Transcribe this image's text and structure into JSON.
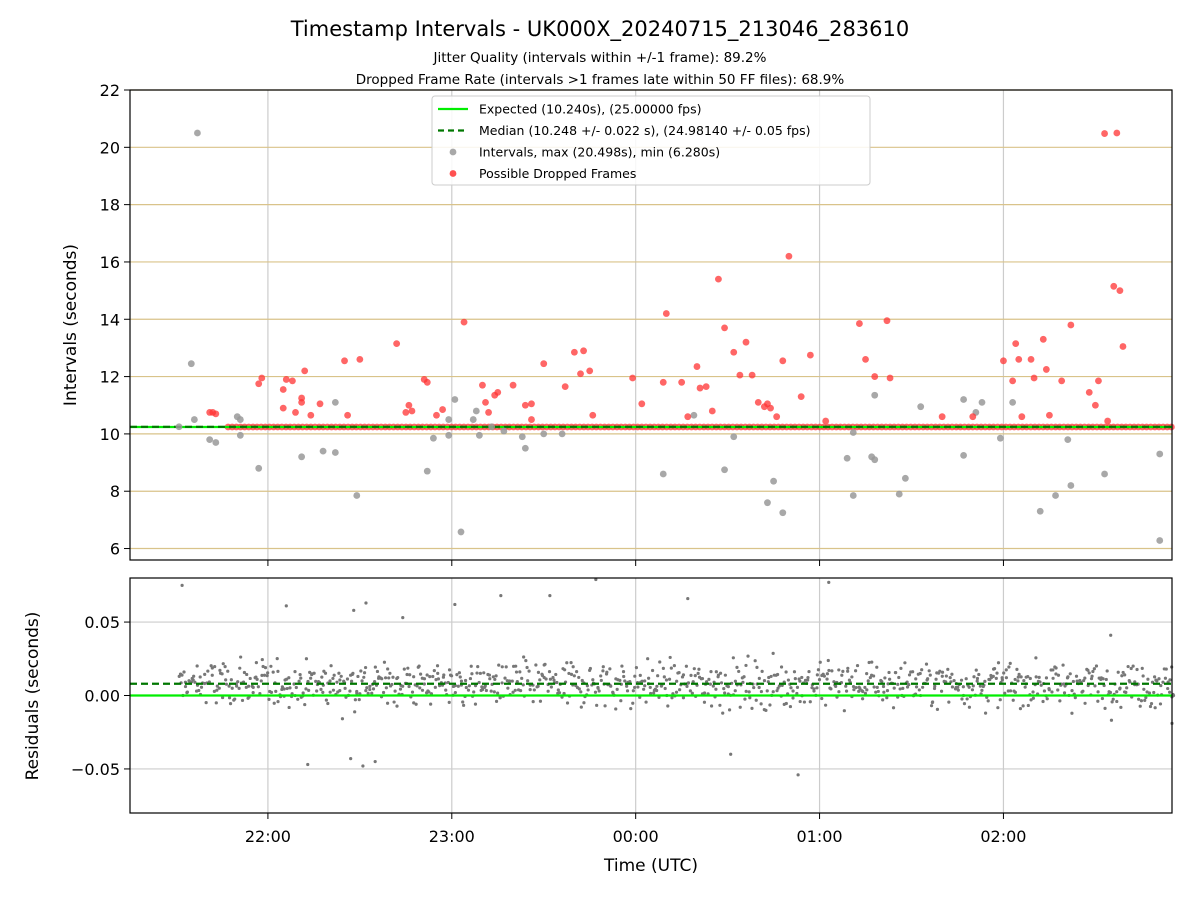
{
  "figure": {
    "title": "Timestamp Intervals - UK000X_20240715_213046_283610",
    "subtitle_1": "Jitter Quality (intervals within +/-1 frame): 89.2%",
    "subtitle_2": "Dropped Frame Rate (intervals >1 frames late within 50 FF files): 68.9%"
  },
  "chart_data": [
    {
      "type": "scatter",
      "panel": "top",
      "xlabel": "",
      "ylabel": "Intervals (seconds)",
      "x_axis": "Time (UTC)",
      "xlim": [
        "21:15",
        "02:55"
      ],
      "ylim": [
        5.6,
        22
      ],
      "y_ticks": [
        6,
        8,
        10,
        12,
        14,
        16,
        18,
        20,
        22
      ],
      "x_ticks": [
        "22:00",
        "23:00",
        "00:00",
        "01:00",
        "02:00"
      ],
      "grid": "horizontal tan lines, vertical grey lines",
      "legend_position": "top-center",
      "colors": {
        "expected": "#00ee00",
        "median": "#007700",
        "intervals": "#999999",
        "dropped": "#ff3333",
        "hgrid": "#d9c38a",
        "vgrid": "#cccccc"
      },
      "lines": [
        {
          "name": "Expected (10.240s), (25.00000 fps)",
          "y": 10.24,
          "style": "solid"
        },
        {
          "name": "Median (10.248 +/- 0.022 s), (24.98140 +/- 0.05 fps)",
          "y": 10.248,
          "style": "dashed"
        }
      ],
      "baseline_band": {
        "y": 10.24,
        "from": "21:47",
        "to": "02:55"
      },
      "series": [
        {
          "name": "Intervals, max (20.498s), min (6.280s)",
          "points": [
            [
              "21:31",
              10.25
            ],
            [
              "21:35",
              12.45
            ],
            [
              "21:37",
              20.5
            ],
            [
              "21:36",
              10.5
            ],
            [
              "21:41",
              9.8
            ],
            [
              "21:43",
              9.7
            ],
            [
              "21:50",
              10.6
            ],
            [
              "21:51",
              10.5
            ],
            [
              "21:51",
              9.95
            ],
            [
              "21:57",
              8.8
            ],
            [
              "22:11",
              9.2
            ],
            [
              "22:18",
              9.4
            ],
            [
              "22:22",
              9.35
            ],
            [
              "22:22",
              11.1
            ],
            [
              "22:29",
              7.85
            ],
            [
              "22:52",
              8.7
            ],
            [
              "22:54",
              9.85
            ],
            [
              "22:59",
              10.5
            ],
            [
              "22:59",
              9.95
            ],
            [
              "23:01",
              11.2
            ],
            [
              "23:03",
              6.58
            ],
            [
              "23:07",
              10.5
            ],
            [
              "23:08",
              10.8
            ],
            [
              "23:09",
              9.95
            ],
            [
              "23:13",
              10.25
            ],
            [
              "23:17",
              10.1
            ],
            [
              "23:23",
              9.9
            ],
            [
              "23:24",
              9.5
            ],
            [
              "23:30",
              10.0
            ],
            [
              "23:36",
              10.0
            ],
            [
              "00:09",
              8.6
            ],
            [
              "00:19",
              10.65
            ],
            [
              "00:29",
              8.75
            ],
            [
              "00:32",
              9.9
            ],
            [
              "00:43",
              7.6
            ],
            [
              "00:45",
              8.35
            ],
            [
              "00:48",
              7.25
            ],
            [
              "01:09",
              9.15
            ],
            [
              "01:11",
              10.05
            ],
            [
              "01:11",
              7.85
            ],
            [
              "01:17",
              9.2
            ],
            [
              "01:18",
              11.35
            ],
            [
              "01:18",
              9.1
            ],
            [
              "01:26",
              7.9
            ],
            [
              "01:28",
              8.45
            ],
            [
              "01:33",
              10.95
            ],
            [
              "01:47",
              11.2
            ],
            [
              "01:47",
              9.25
            ],
            [
              "01:51",
              10.75
            ],
            [
              "01:53",
              11.1
            ],
            [
              "01:59",
              9.85
            ],
            [
              "02:03",
              11.1
            ],
            [
              "02:12",
              7.3
            ],
            [
              "02:17",
              7.85
            ],
            [
              "02:21",
              9.8
            ],
            [
              "02:22",
              8.2
            ],
            [
              "02:33",
              8.6
            ],
            [
              "02:51",
              6.28
            ],
            [
              "02:51",
              9.3
            ]
          ]
        },
        {
          "name": "Possible Dropped Frames",
          "points": [
            [
              "21:41",
              10.75
            ],
            [
              "21:42",
              10.75
            ],
            [
              "21:43",
              10.7
            ],
            [
              "21:57",
              11.75
            ],
            [
              "21:58",
              11.95
            ],
            [
              "22:05",
              11.55
            ],
            [
              "22:05",
              10.9
            ],
            [
              "22:06",
              11.9
            ],
            [
              "22:08",
              11.85
            ],
            [
              "22:09",
              10.75
            ],
            [
              "22:11",
              11.1
            ],
            [
              "22:11",
              11.25
            ],
            [
              "22:12",
              12.2
            ],
            [
              "22:14",
              10.65
            ],
            [
              "22:17",
              11.05
            ],
            [
              "22:25",
              12.55
            ],
            [
              "22:26",
              10.65
            ],
            [
              "22:30",
              12.6
            ],
            [
              "22:42",
              13.15
            ],
            [
              "22:45",
              10.75
            ],
            [
              "22:46",
              11.0
            ],
            [
              "22:47",
              10.8
            ],
            [
              "22:51",
              11.9
            ],
            [
              "22:52",
              11.8
            ],
            [
              "22:55",
              10.65
            ],
            [
              "22:57",
              10.85
            ],
            [
              "23:04",
              13.9
            ],
            [
              "23:10",
              11.7
            ],
            [
              "23:11",
              11.1
            ],
            [
              "23:12",
              10.75
            ],
            [
              "23:14",
              11.35
            ],
            [
              "23:15",
              11.45
            ],
            [
              "23:20",
              11.7
            ],
            [
              "23:24",
              11.0
            ],
            [
              "23:26",
              11.05
            ],
            [
              "23:26",
              10.5
            ],
            [
              "23:30",
              12.45
            ],
            [
              "23:37",
              11.65
            ],
            [
              "23:40",
              12.85
            ],
            [
              "23:42",
              12.1
            ],
            [
              "23:43",
              12.9
            ],
            [
              "23:45",
              12.2
            ],
            [
              "23:46",
              10.65
            ],
            [
              "23:59",
              11.95
            ],
            [
              "00:02",
              11.05
            ],
            [
              "00:09",
              11.8
            ],
            [
              "00:10",
              14.2
            ],
            [
              "00:15",
              11.8
            ],
            [
              "00:17",
              10.6
            ],
            [
              "00:20",
              12.35
            ],
            [
              "00:21",
              11.6
            ],
            [
              "00:23",
              11.65
            ],
            [
              "00:25",
              10.8
            ],
            [
              "00:27",
              15.4
            ],
            [
              "00:29",
              13.7
            ],
            [
              "00:32",
              12.85
            ],
            [
              "00:34",
              12.05
            ],
            [
              "00:36",
              13.2
            ],
            [
              "00:38",
              12.05
            ],
            [
              "00:40",
              11.1
            ],
            [
              "00:42",
              10.95
            ],
            [
              "00:43",
              11.05
            ],
            [
              "00:44",
              10.9
            ],
            [
              "00:46",
              10.6
            ],
            [
              "00:48",
              12.55
            ],
            [
              "00:50",
              16.2
            ],
            [
              "00:54",
              11.3
            ],
            [
              "00:57",
              12.75
            ],
            [
              "01:02",
              10.45
            ],
            [
              "01:13",
              13.85
            ],
            [
              "01:15",
              12.6
            ],
            [
              "01:18",
              12.0
            ],
            [
              "01:22",
              13.95
            ],
            [
              "01:23",
              11.95
            ],
            [
              "01:40",
              10.6
            ],
            [
              "01:50",
              10.6
            ],
            [
              "02:00",
              12.55
            ],
            [
              "02:03",
              11.85
            ],
            [
              "02:04",
              13.15
            ],
            [
              "02:05",
              12.6
            ],
            [
              "02:06",
              10.6
            ],
            [
              "02:09",
              12.6
            ],
            [
              "02:10",
              11.95
            ],
            [
              "02:13",
              13.3
            ],
            [
              "02:14",
              12.25
            ],
            [
              "02:15",
              10.65
            ],
            [
              "02:19",
              11.85
            ],
            [
              "02:22",
              13.8
            ],
            [
              "02:28",
              11.45
            ],
            [
              "02:30",
              11.0
            ],
            [
              "02:31",
              11.85
            ],
            [
              "02:33",
              20.48
            ],
            [
              "02:34",
              10.45
            ],
            [
              "02:36",
              15.15
            ],
            [
              "02:37",
              20.5
            ],
            [
              "02:38",
              15.0
            ],
            [
              "02:39",
              13.05
            ]
          ]
        }
      ]
    },
    {
      "type": "scatter",
      "panel": "bottom",
      "xlabel": "Time (UTC)",
      "ylabel": "Residuals (seconds)",
      "xlim": [
        "21:15",
        "02:55"
      ],
      "ylim": [
        -0.08,
        0.08
      ],
      "y_ticks": [
        "−0.05",
        "0.00",
        "0.05"
      ],
      "y_tick_values": [
        -0.05,
        0.0,
        0.05
      ],
      "x_ticks": [
        "22:00",
        "23:00",
        "00:00",
        "01:00",
        "02:00"
      ],
      "grid": "on",
      "lines": [
        {
          "name": "expected",
          "y": 0.0,
          "style": "solid",
          "color": "#00ee00"
        },
        {
          "name": "median",
          "y": 0.008,
          "style": "dashed",
          "color": "#007700"
        }
      ],
      "series": [
        {
          "name": "residuals",
          "color": "#777777",
          "sampling": "about 1000 points between 21:31 and 02:56, mostly within -0.02 to 0.03",
          "points_notable": [
            [
              "21:32",
              0.075
            ],
            [
              "22:06",
              0.061
            ],
            [
              "22:13",
              -0.047
            ],
            [
              "22:27",
              -0.043
            ],
            [
              "22:28",
              0.058
            ],
            [
              "22:31",
              -0.048
            ],
            [
              "22:32",
              0.063
            ],
            [
              "22:35",
              -0.045
            ],
            [
              "22:44",
              0.053
            ],
            [
              "23:01",
              0.062
            ],
            [
              "23:16",
              0.068
            ],
            [
              "23:32",
              0.068
            ],
            [
              "23:47",
              0.079
            ],
            [
              "00:17",
              0.066
            ],
            [
              "00:31",
              -0.04
            ],
            [
              "00:53",
              -0.054
            ],
            [
              "01:03",
              0.077
            ],
            [
              "02:35",
              0.041
            ],
            [
              "02:55",
              -0.019
            ]
          ]
        }
      ]
    }
  ]
}
